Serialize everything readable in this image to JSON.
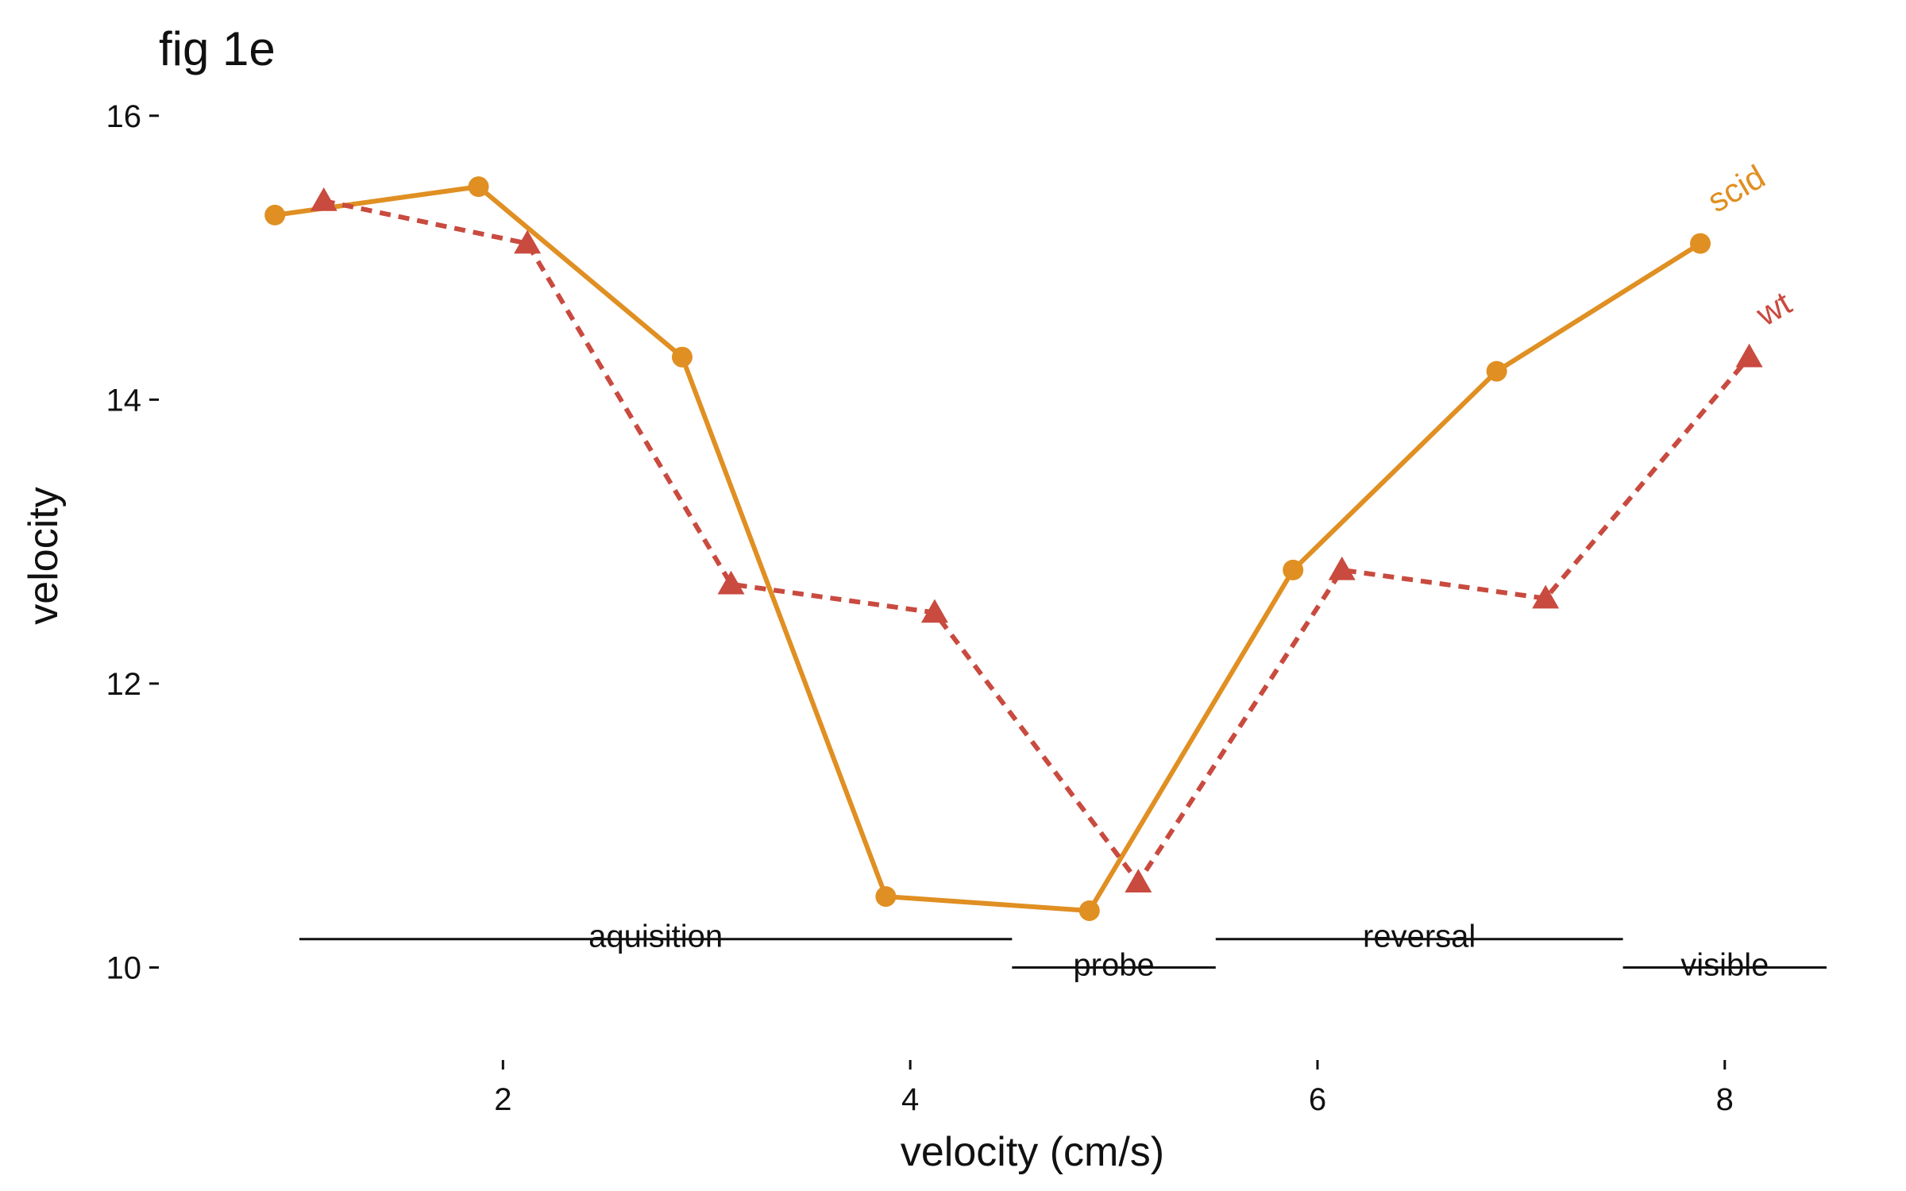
{
  "chart_data": {
    "type": "line",
    "title": "fig 1e",
    "xlabel": "velocity (cm/s)",
    "ylabel": "velocity",
    "xlim": [
      0.7,
      8.5
    ],
    "ylim": [
      9.6,
      16.2
    ],
    "x_ticks": [
      2,
      4,
      6,
      8
    ],
    "y_ticks": [
      10,
      12,
      14,
      16
    ],
    "grid": false,
    "legend": "direct labels at line ends",
    "series": [
      {
        "name": "scid",
        "color": "#e08f22",
        "linestyle": "solid",
        "marker": "circle",
        "x": [
          0.88,
          1.88,
          2.88,
          3.88,
          4.88,
          5.88,
          6.88,
          7.88
        ],
        "y": [
          15.3,
          15.5,
          14.3,
          10.5,
          10.4,
          12.8,
          14.2,
          15.1
        ]
      },
      {
        "name": "wt",
        "color": "#c94a3f",
        "linestyle": "dashed",
        "marker": "triangle",
        "x": [
          1.12,
          2.12,
          3.12,
          4.12,
          5.12,
          6.12,
          7.12,
          8.12
        ],
        "y": [
          15.4,
          15.1,
          12.7,
          12.5,
          10.6,
          12.8,
          12.6,
          14.3
        ]
      }
    ],
    "annotations": [
      {
        "label": "aquisition",
        "x_start": 1.0,
        "x_end": 4.5,
        "y": 10.2
      },
      {
        "label": "probe",
        "x_start": 4.5,
        "x_end": 5.5,
        "y": 10.0
      },
      {
        "label": "reversal",
        "x_start": 5.5,
        "x_end": 7.5,
        "y": 10.2
      },
      {
        "label": "visible",
        "x_start": 7.5,
        "x_end": 8.5,
        "y": 10.0
      }
    ]
  }
}
